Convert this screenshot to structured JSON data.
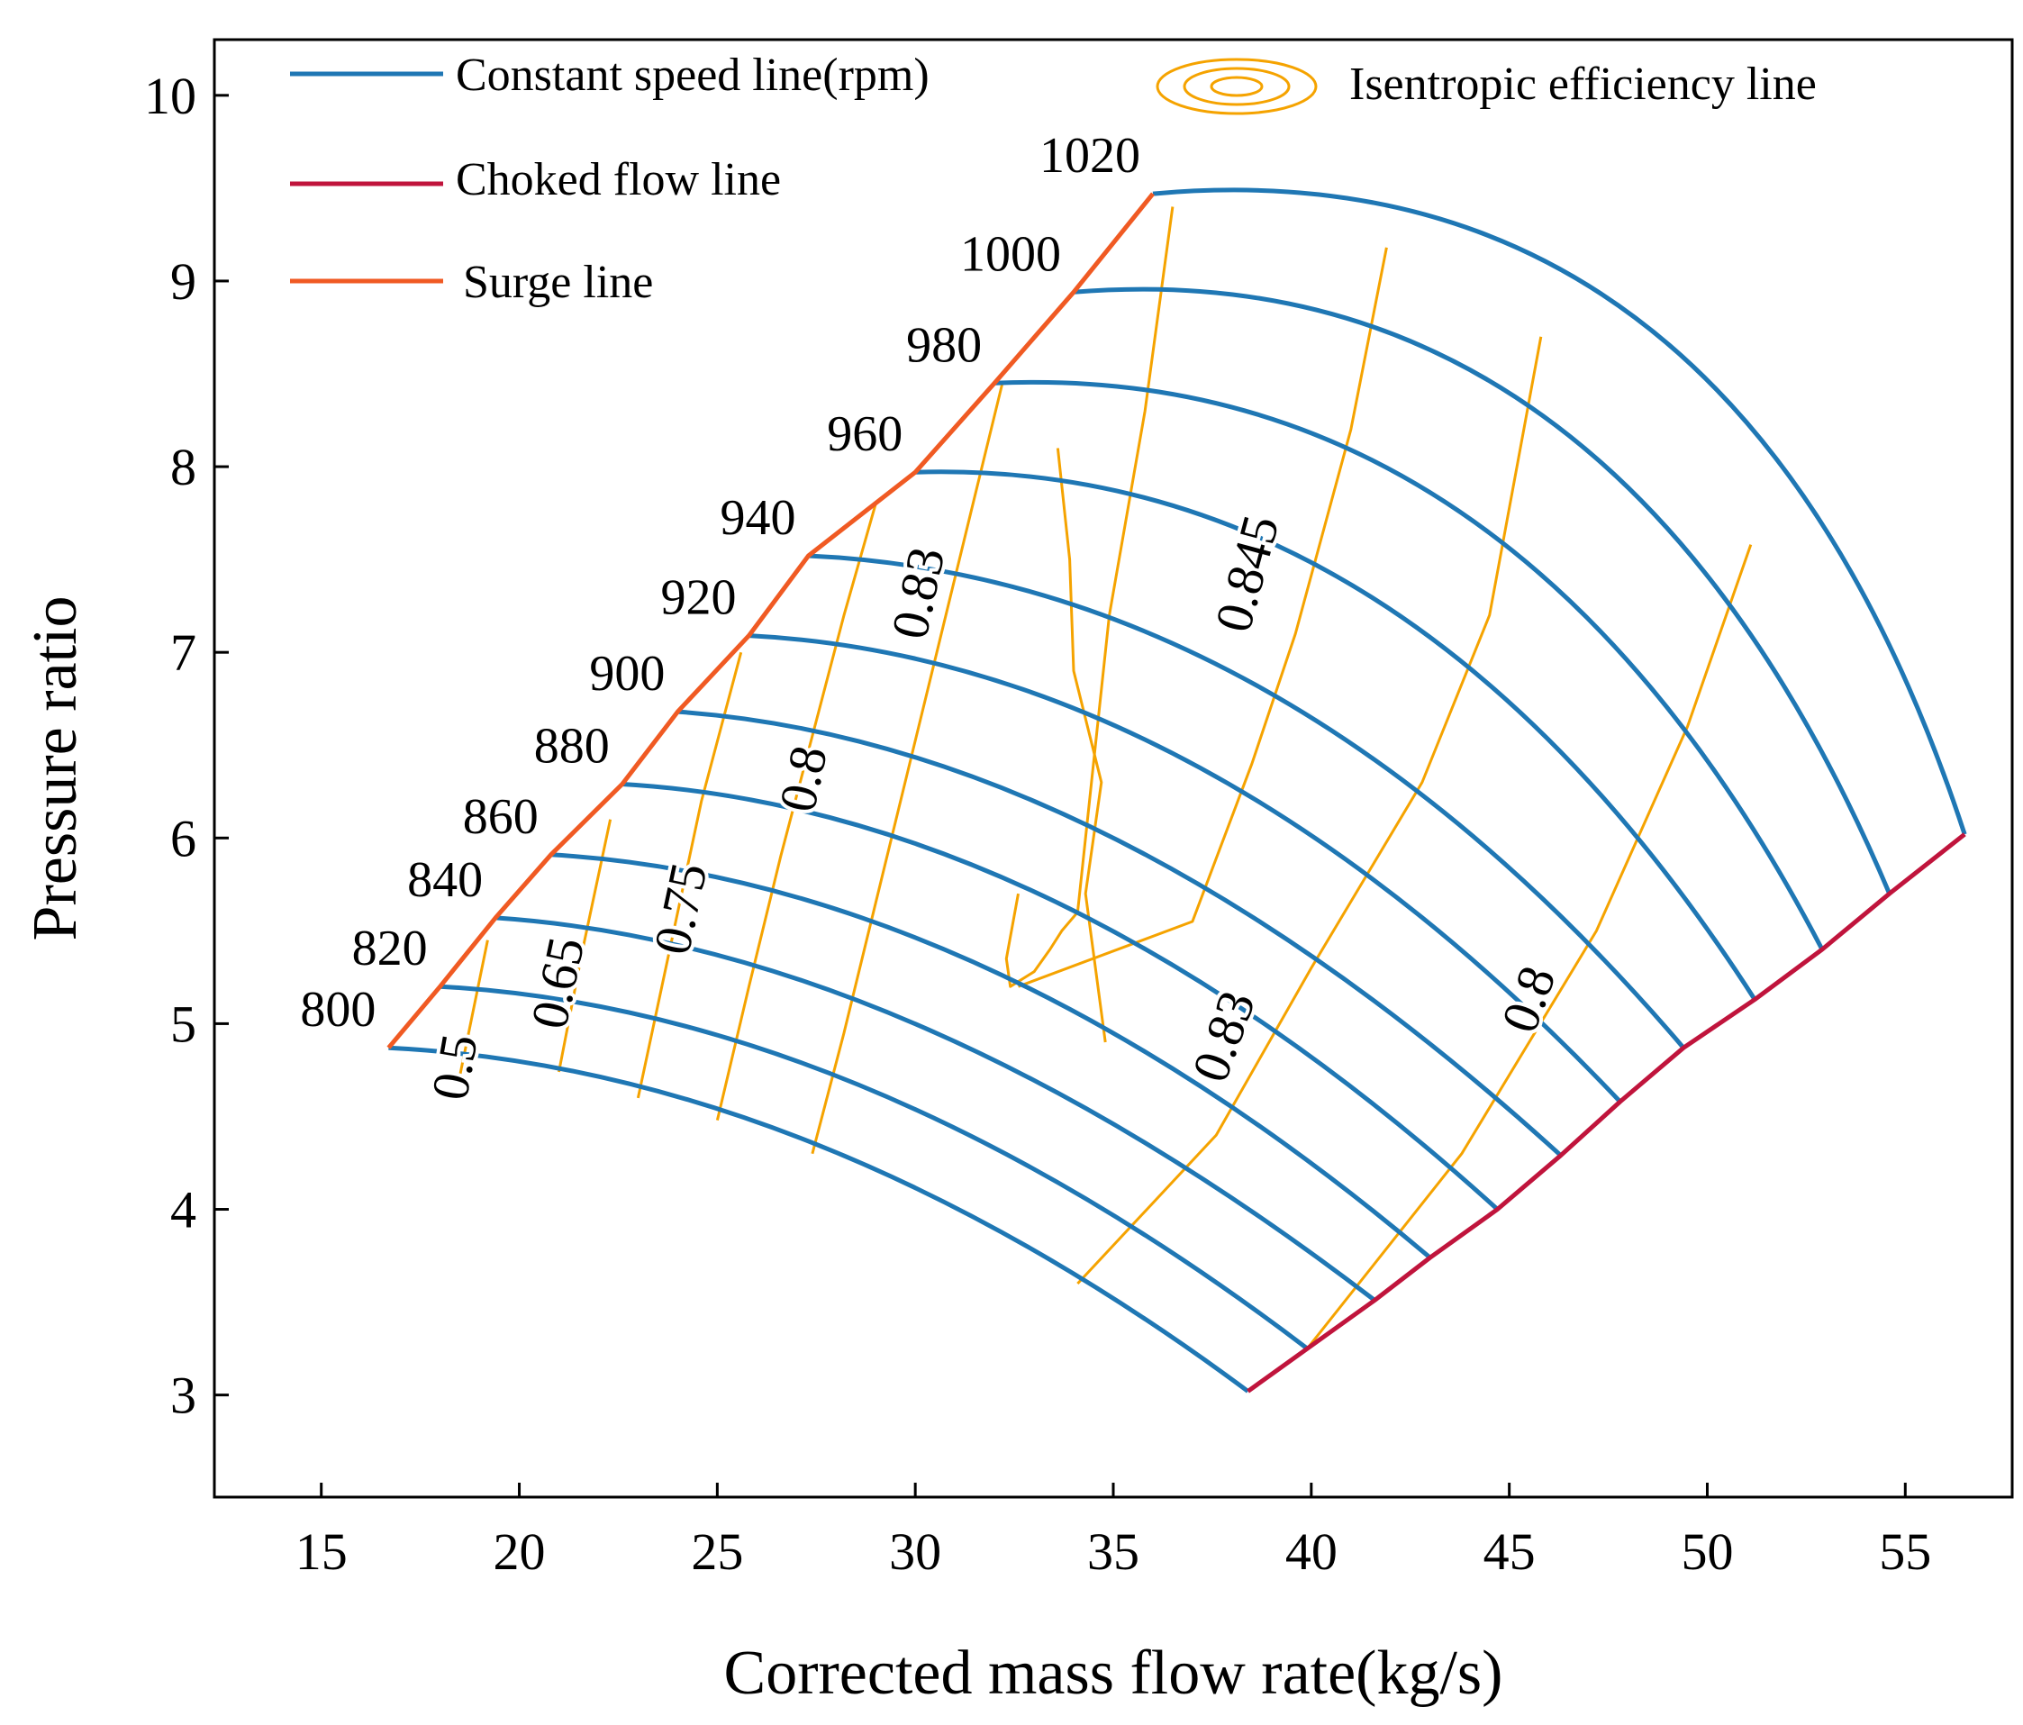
{
  "chart_data": {
    "type": "line",
    "title": "",
    "xlabel": "Corrected mass flow rate(kg/s)",
    "ylabel": "Pressure ratio",
    "xlim": [
      12.3,
      57.7
    ],
    "ylim": [
      2.45,
      10.3
    ],
    "xticks": [
      15,
      20,
      25,
      30,
      35,
      40,
      45,
      50,
      55
    ],
    "yticks": [
      3,
      4,
      5,
      6,
      7,
      8,
      9,
      10
    ],
    "grid": false,
    "colors": {
      "speed": "#1f77b4",
      "choke": "#c0143c",
      "surge": "#f05a23",
      "efficiency": "#f5a300"
    },
    "legend": {
      "placement": "top",
      "items": [
        {
          "key": "speed",
          "label": "Constant speed line(rpm)"
        },
        {
          "key": "choke",
          "label": "Choked flow line"
        },
        {
          "key": "surge",
          "label": "Surge line"
        },
        {
          "key": "efficiency",
          "label": "Isentropic efficiency line"
        }
      ]
    },
    "speed_lines": [
      {
        "name": "800",
        "start": [
          16.7,
          4.87
        ],
        "mid": [
          27.5,
          4.35
        ],
        "end": [
          38.4,
          3.02
        ]
      },
      {
        "name": "820",
        "start": [
          18.0,
          5.2
        ],
        "mid": [
          28.8,
          4.65
        ],
        "end": [
          39.9,
          3.25
        ]
      },
      {
        "name": "840",
        "start": [
          19.4,
          5.57
        ],
        "mid": [
          30.2,
          4.98
        ],
        "end": [
          41.6,
          3.51
        ]
      },
      {
        "name": "860",
        "start": [
          20.8,
          5.91
        ],
        "mid": [
          31.8,
          5.3
        ],
        "end": [
          43.0,
          3.74
        ]
      },
      {
        "name": "880",
        "start": [
          22.6,
          6.29
        ],
        "mid": [
          33.6,
          5.65
        ],
        "end": [
          44.7,
          4.0
        ]
      },
      {
        "name": "900",
        "start": [
          24.0,
          6.68
        ],
        "mid": [
          35.0,
          6.0
        ],
        "end": [
          46.3,
          4.29
        ]
      },
      {
        "name": "920",
        "start": [
          25.8,
          7.09
        ],
        "mid": [
          37.0,
          6.4
        ],
        "end": [
          47.8,
          4.58
        ]
      },
      {
        "name": "940",
        "start": [
          27.3,
          7.52
        ],
        "mid": [
          38.8,
          6.8
        ],
        "end": [
          49.4,
          4.87
        ]
      },
      {
        "name": "960",
        "start": [
          30.0,
          7.97
        ],
        "mid": [
          41.5,
          7.3
        ],
        "end": [
          51.2,
          5.13
        ]
      },
      {
        "name": "980",
        "start": [
          32.0,
          8.45
        ],
        "mid": [
          43.8,
          7.75
        ],
        "end": [
          52.9,
          5.4
        ]
      },
      {
        "name": "1000",
        "start": [
          34.0,
          8.94
        ],
        "mid": [
          46.0,
          8.25
        ],
        "end": [
          54.6,
          5.7
        ]
      },
      {
        "name": "1020",
        "start": [
          36.0,
          9.47
        ],
        "mid": [
          48.5,
          8.75
        ],
        "end": [
          56.5,
          6.02
        ]
      }
    ],
    "surge_line": {
      "x": [
        16.7,
        18.0,
        19.4,
        20.8,
        22.6,
        24.0,
        25.8,
        27.3,
        30.0,
        32.0,
        34.0,
        36.0
      ],
      "y": [
        4.87,
        5.2,
        5.57,
        5.91,
        6.29,
        6.68,
        7.09,
        7.52,
        7.97,
        8.45,
        8.94,
        9.47
      ]
    },
    "choke_line": {
      "x": [
        38.4,
        39.9,
        41.6,
        43.0,
        44.7,
        46.3,
        47.8,
        49.4,
        51.2,
        52.9,
        54.6,
        56.5
      ],
      "y": [
        3.02,
        3.25,
        3.51,
        3.74,
        4.0,
        4.29,
        4.58,
        4.87,
        5.13,
        5.4,
        5.7,
        6.02
      ]
    },
    "efficiency_lines": [
      {
        "label": "0.5",
        "x": [
          18.5,
          19.2
        ],
        "y": [
          4.72,
          5.45
        ]
      },
      {
        "label": "0.65",
        "x": [
          21.0,
          21.6,
          22.3
        ],
        "y": [
          4.74,
          5.4,
          6.1
        ]
      },
      {
        "label": "0.75",
        "x": [
          23.0,
          23.8,
          24.6,
          25.6
        ],
        "y": [
          4.6,
          5.4,
          6.2,
          7.0
        ]
      },
      {
        "label": "0.8",
        "x": [
          25.0,
          25.8,
          26.6,
          27.4,
          28.2,
          29.0
        ],
        "y": [
          4.48,
          5.2,
          5.9,
          6.55,
          7.2,
          7.8
        ]
      },
      {
        "label": "0.83",
        "x": [
          27.4,
          28.2,
          29.0,
          29.8,
          30.6,
          31.4,
          32.2
        ],
        "y": [
          4.3,
          4.95,
          5.65,
          6.35,
          7.05,
          7.75,
          8.45
        ]
      },
      {
        "label": "0.83",
        "x": [
          33.6,
          33.9,
          34.0,
          34.7,
          34.3,
          34.8
        ],
        "y": [
          8.1,
          7.5,
          6.9,
          6.3,
          5.7,
          4.9
        ]
      },
      {
        "label": "0.845",
        "x": [
          32.6,
          32.3,
          32.4,
          33.0,
          33.4,
          33.7,
          34.1,
          34.9,
          35.8,
          36.5
        ],
        "y": [
          5.7,
          5.35,
          5.2,
          5.28,
          5.4,
          5.5,
          5.6,
          7.2,
          8.3,
          9.4
        ]
      },
      {
        "label": "0.845",
        "x": [
          32.6,
          37.0,
          38.5,
          39.6,
          41.0,
          41.9
        ],
        "y": [
          5.2,
          5.55,
          6.4,
          7.1,
          8.2,
          9.18
        ]
      },
      {
        "label": "0.83",
        "x": [
          34.1,
          37.6,
          40.0,
          42.8,
          44.5,
          45.8
        ],
        "y": [
          3.6,
          4.4,
          5.3,
          6.3,
          7.2,
          8.7
        ]
      },
      {
        "label": "0.8",
        "x": [
          39.9,
          43.8,
          47.2,
          49.5,
          51.1
        ],
        "y": [
          3.25,
          4.3,
          5.5,
          6.6,
          7.58
        ]
      }
    ],
    "efficiency_labels": [
      {
        "text": "0.5",
        "x": 18.8,
        "y": 4.75,
        "angle": -80
      },
      {
        "text": "0.65",
        "x": 21.4,
        "y": 5.2,
        "angle": -78
      },
      {
        "text": "0.75",
        "x": 24.5,
        "y": 5.6,
        "angle": -78
      },
      {
        "text": "0.8",
        "x": 27.6,
        "y": 6.3,
        "angle": -78
      },
      {
        "text": "0.83",
        "x": 30.5,
        "y": 7.3,
        "angle": -78
      },
      {
        "text": "0.845",
        "x": 38.8,
        "y": 7.4,
        "angle": -75
      },
      {
        "text": "0.83",
        "x": 38.2,
        "y": 4.9,
        "angle": -70
      },
      {
        "text": "0.8",
        "x": 45.9,
        "y": 5.1,
        "angle": -70
      }
    ]
  }
}
